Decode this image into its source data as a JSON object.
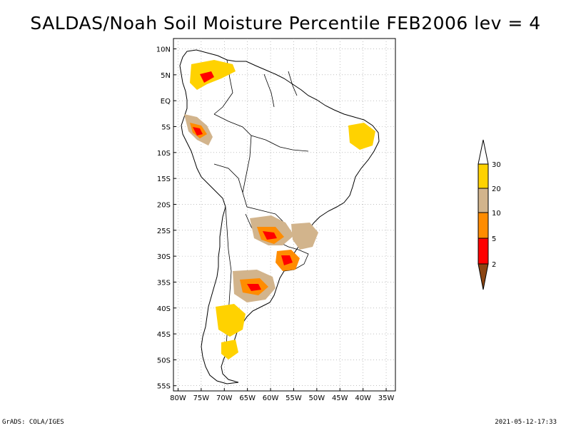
{
  "title": "SALDAS/Noah Soil Moisture Percentile FEB2006 lev = 4",
  "footer": {
    "left": "GrADS: COLA/IGES",
    "right": "2021-05-12-17:33"
  },
  "map": {
    "lon_ticks": [
      "80W",
      "75W",
      "70W",
      "65W",
      "60W",
      "55W",
      "50W",
      "45W",
      "40W",
      "35W"
    ],
    "lat_ticks": [
      "10N",
      "5N",
      "EQ",
      "5S",
      "10S",
      "15S",
      "20S",
      "25S",
      "30S",
      "35S",
      "40S",
      "45S",
      "50S",
      "55S"
    ],
    "lon_range": [
      -81,
      -33
    ],
    "lat_range": [
      -56,
      12
    ],
    "grid": "dotted"
  },
  "legend": {
    "labels": [
      "30",
      "20",
      "10",
      "5",
      "2"
    ],
    "colors": [
      "#ffffff",
      "#ffd200",
      "#d2b48c",
      "#ff8c00",
      "#ff0000",
      "#8b4513"
    ]
  }
}
